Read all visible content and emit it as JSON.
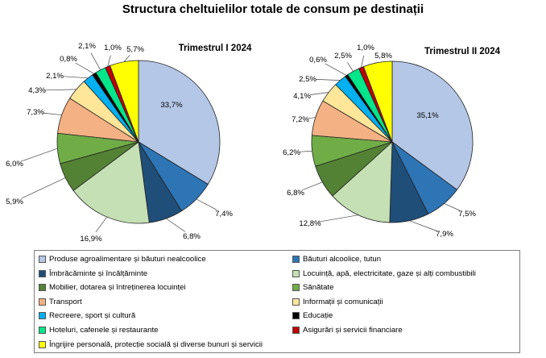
{
  "title": "Structura cheltuielilor totale de consum pe destinații",
  "chart_data": [
    {
      "type": "pie",
      "title": "Trimestrul  I 2024",
      "categories": [
        "Produse agroalimentare și băuturi nealcoolice",
        "Băuturi alcoolice, tutun",
        "Îmbrăcăminte și încălțăminte",
        "Locuință, apă, electricitate, gaze și alți combustibili",
        "Mobilier,  dotarea și întreținerea locuinței",
        "Sănătate",
        "Transport",
        "Informații și comunicații",
        "Recreere, sport și cultură",
        "Educație",
        "Hoteluri,  cafenele și restaurante",
        "Asigurări și servicii financiare",
        "Îngrijire personală, protecție socială și diverse bunuri și servicii"
      ],
      "values": [
        33.7,
        7.4,
        6.8,
        16.9,
        5.9,
        6.0,
        7.3,
        4.3,
        2.1,
        0.8,
        2.1,
        1.0,
        5.7
      ],
      "labels": [
        "33,7%",
        "7,4%",
        "6,8%",
        "16,9%",
        "5,9%",
        "6,0%",
        "7,3%",
        "4,3%",
        "2,1%",
        "0,8%",
        "2,1%",
        "1,0%",
        "5,7%"
      ],
      "units": "%"
    },
    {
      "type": "pie",
      "title": "Trimestrul  II 2024",
      "categories": [
        "Produse agroalimentare și băuturi nealcoolice",
        "Băuturi alcoolice, tutun",
        "Îmbrăcăminte și încălțăminte",
        "Locuință, apă, electricitate, gaze și alți combustibili",
        "Mobilier,  dotarea și întreținerea locuinței",
        "Sănătate",
        "Transport",
        "Informații și comunicații",
        "Recreere, sport și cultură",
        "Educație",
        "Hoteluri,  cafenele și restaurante",
        "Asigurări și servicii financiare",
        "Îngrijire personală, protecție socială și diverse bunuri și servicii"
      ],
      "values": [
        35.1,
        7.5,
        7.9,
        12.8,
        6.8,
        6.2,
        7.2,
        4.1,
        2.5,
        0.6,
        2.5,
        1.0,
        5.8
      ],
      "labels": [
        "35,1%",
        "7,5%",
        "7,9%",
        "12,8%",
        "6,8%",
        "6,2%",
        "7,2%",
        "4,1%",
        "2,5%",
        "0,6%",
        "2,5%",
        "1,0%",
        "5,8%"
      ],
      "units": "%"
    }
  ],
  "legend": {
    "placement": "bottom",
    "entries": [
      "Produse agroalimentare și băuturi nealcoolice",
      "Băuturi alcoolice, tutun",
      "Îmbrăcăminte și încălțăminte",
      "Locuință, apă, electricitate, gaze și alți combustibili",
      "Mobilier,  dotarea și întreținerea locuinței",
      "Sănătate",
      "Transport",
      "Informații și comunicații",
      "Recreere, sport și cultură",
      "Educație",
      "Hoteluri,  cafenele și restaurante",
      "Asigurări și servicii financiare",
      "Îngrijire personală, protecție socială și diverse bunuri și servicii"
    ]
  },
  "colors": [
    "#b4c7e7",
    "#2e75b6",
    "#1f4e79",
    "#c5e0b4",
    "#548235",
    "#70ad47",
    "#f4b183",
    "#ffe699",
    "#00b0f0",
    "#000000",
    "#00e68a",
    "#c00000",
    "#ffff00"
  ]
}
